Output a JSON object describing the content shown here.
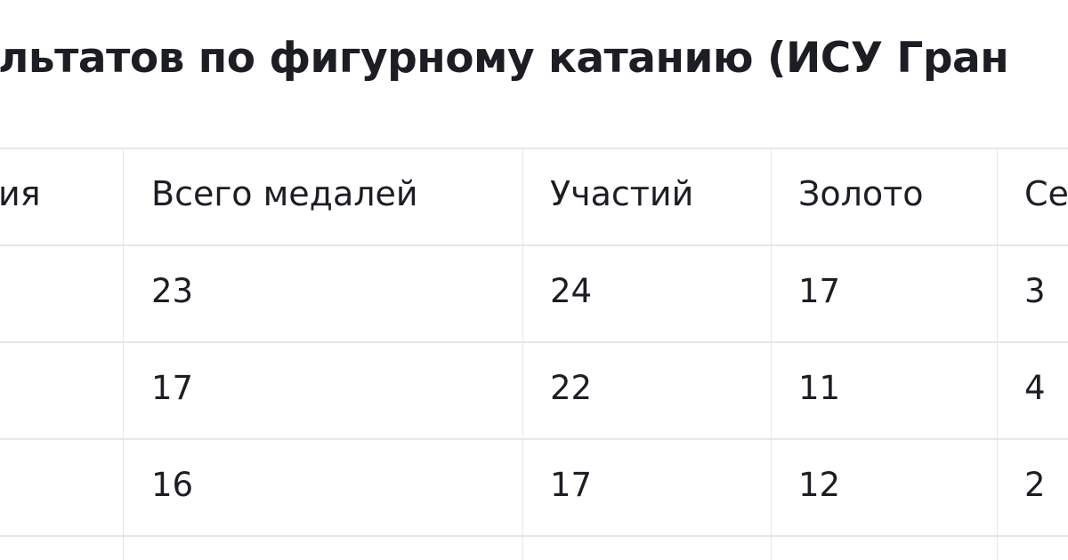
{
  "title": "льтатов по фигурному катанию (ИСУ Гран",
  "table": {
    "headers": [
      "ия",
      "Всего медалей",
      "Участий",
      "Золото",
      "Се"
    ],
    "rows": [
      [
        "",
        "23",
        "24",
        "17",
        "3"
      ],
      [
        "",
        "17",
        "22",
        "11",
        "4"
      ],
      [
        "",
        "16",
        "17",
        "12",
        "2"
      ]
    ]
  }
}
